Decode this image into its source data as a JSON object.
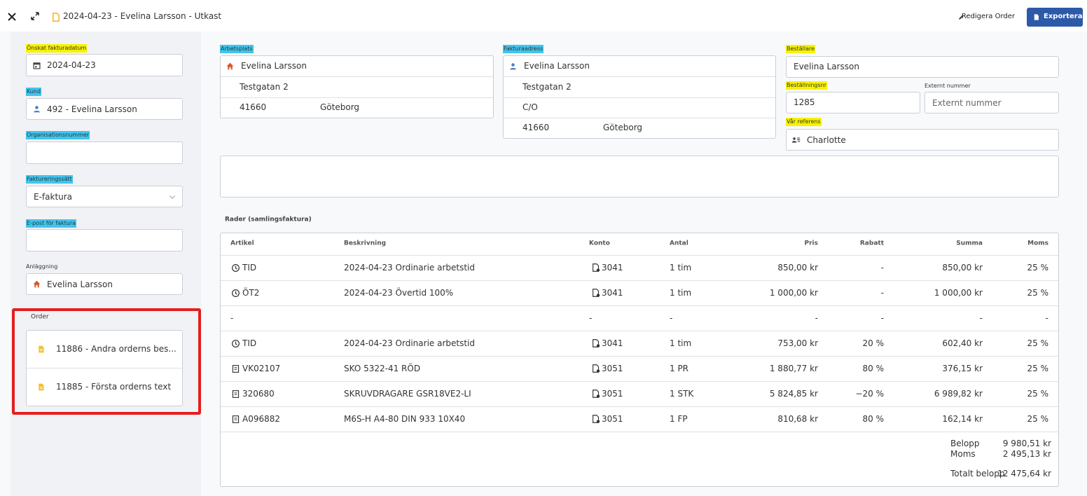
{
  "header": {
    "title": "2024-04-23 - Evelina Larsson - Utkast",
    "edit_button": "Redigera Order",
    "export_button": "Exportera"
  },
  "left_panel": {
    "fields": [
      {
        "label": "Önskat fakturadatum",
        "value": "2024-04-23"
      },
      {
        "label": "Kund",
        "value": "492 - Evelina Larsson"
      },
      {
        "label": "Organisationsnummer"
      },
      {
        "label": "Faktureringssätt",
        "value": "E-faktura"
      },
      {
        "label": "E-post för faktura"
      },
      {
        "label": "Anläggning",
        "value": "Evelina Larsson"
      }
    ],
    "order": {
      "label": "Order",
      "items": [
        "11886 - Andra orderns bes...",
        "11885 - Första orderns text"
      ]
    }
  },
  "arbetsplats": {
    "label": "Arbetsplats",
    "name": "Evelina Larsson",
    "street": "Testgatan 2",
    "postal_code": "41660",
    "city": "Göteborg"
  },
  "fakturaadress": {
    "label": "Fakturaadress",
    "name": "Evelina Larsson",
    "street": "Testgatan 2",
    "co": "C/O",
    "postal_code": "41660",
    "city": "Göteborg"
  },
  "bestallare": {
    "label": "Beställare",
    "value": "Evelina Larsson"
  },
  "bestallningsnr": {
    "label": "Beställningsnr",
    "value": "1285"
  },
  "externt_nummer": {
    "label": "Externt nummer",
    "placeholder": "Externt nummer"
  },
  "var_referens": {
    "label": "Vår referens",
    "value": "Charlotte"
  },
  "rows_table": {
    "title": "Rader (samlingsfaktura)",
    "columns": [
      "Artikel",
      "Beskrivning",
      "Konto",
      "Antal",
      "Pris",
      "Rabatt",
      "Summa",
      "Moms"
    ],
    "rows": [
      [
        "TID",
        "2024-04-23 Ordinarie arbetstid",
        "3041",
        "1 tim",
        "850,00 kr",
        "-",
        "850,00 kr",
        "25 %"
      ],
      [
        "ÖT2",
        "2024-04-23 Övertid 100%",
        "3041",
        "1 tim",
        "1 000,00 kr",
        "-",
        "1 000,00 kr",
        "25 %"
      ],
      [
        "-",
        null,
        "-",
        "-",
        "-",
        "-",
        "-",
        "-"
      ],
      [
        "TID",
        "2024-04-23 Ordinarie arbetstid",
        "3041",
        "1 tim",
        "753,00 kr",
        "20 %",
        "602,40 kr",
        "25 %"
      ],
      [
        "VK02107",
        "SKO 5322-41 RÖD",
        "3051",
        "1 PR",
        "1 880,77 kr",
        "80 %",
        "376,15 kr",
        "25 %"
      ],
      [
        "320680",
        "SKRUVDRAGARE GSR18VE2-LI",
        "3051",
        "1 STK",
        "5 824,85 kr",
        "−20 %",
        "6 989,82 kr",
        "25 %"
      ],
      [
        "A096882",
        "M6S-H A4-80 DIN 933 10X40",
        "3051",
        "1 FP",
        "810,68 kr",
        "80 %",
        "162,14 kr",
        "25 %"
      ]
    ],
    "totals": [
      {
        "label": "Belopp",
        "value": "9 980,51 kr"
      },
      {
        "label": "Moms",
        "value": "2 495,13 kr"
      },
      {
        "label": "Totalt belopp",
        "value": "12 475,64 kr"
      }
    ]
  }
}
